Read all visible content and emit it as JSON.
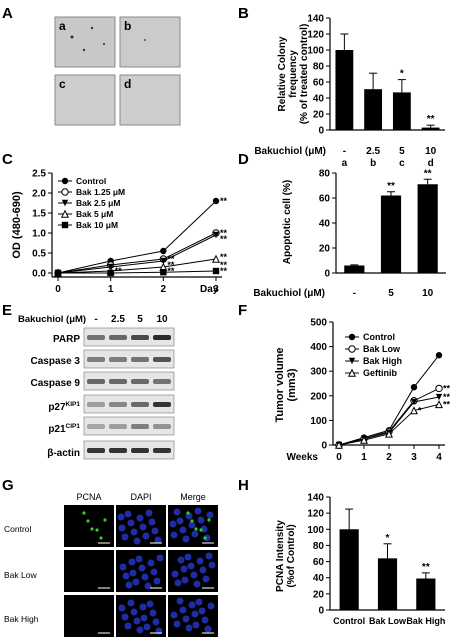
{
  "panel_labels": [
    "A",
    "B",
    "C",
    "D",
    "E",
    "F",
    "G",
    "H"
  ],
  "panel_a": {
    "sublabels": [
      "a",
      "b",
      "c",
      "d"
    ]
  },
  "chart_data": [
    {
      "panel": "B",
      "type": "bar",
      "ylabel_lines": [
        "Relative Colony",
        "frequency",
        "(% of treated control)"
      ],
      "xlabel": "Bakuchiol (μM)",
      "categories": [
        "-",
        "2.5",
        "5",
        "10"
      ],
      "sublabels": [
        "a",
        "b",
        "c",
        "d"
      ],
      "values": [
        100,
        51,
        47,
        3
      ],
      "errors": [
        20,
        20,
        16,
        3
      ],
      "significance": [
        "",
        "",
        "*",
        "**"
      ],
      "ylim": [
        0,
        140
      ],
      "yticks": [
        0,
        20,
        40,
        60,
        80,
        100,
        120,
        140
      ]
    },
    {
      "panel": "C",
      "type": "line",
      "ylabel": "OD (480-690)",
      "xlabel": "Day",
      "x": [
        0,
        1,
        2,
        3
      ],
      "ylim": [
        -0.1,
        2.5
      ],
      "yticks": [
        0.0,
        0.5,
        1.0,
        1.5,
        2.0,
        2.5
      ],
      "series": [
        {
          "name": "Control",
          "marker": "circle-filled",
          "values": [
            0.0,
            0.3,
            0.55,
            1.8
          ]
        },
        {
          "name": "Bak 1.25 μM",
          "marker": "circle-open",
          "values": [
            0.0,
            0.2,
            0.35,
            1.0
          ]
        },
        {
          "name": "Bak   2.5 μM",
          "marker": "triangle-down-filled",
          "values": [
            0.0,
            0.15,
            0.3,
            0.95
          ]
        },
        {
          "name": "Bak     5 μM",
          "marker": "triangle-up-open",
          "values": [
            0.0,
            0.05,
            0.15,
            0.35
          ]
        },
        {
          "name": "Bak   10 μM",
          "marker": "square-filled",
          "values": [
            0.0,
            0.0,
            0.02,
            0.05
          ]
        }
      ],
      "annotations": [
        {
          "x": 3,
          "y": 1.8,
          "text": "**"
        },
        {
          "x": 3,
          "y": 1.0,
          "text": "**"
        },
        {
          "x": 3,
          "y": 0.85,
          "text": "**"
        },
        {
          "x": 3,
          "y": 0.4,
          "text": "**"
        },
        {
          "x": 3,
          "y": 0.2,
          "text": "**"
        },
        {
          "x": 3,
          "y": 0.05,
          "text": "**"
        },
        {
          "x": 2,
          "y": 0.35,
          "text": "**"
        },
        {
          "x": 2,
          "y": 0.2,
          "text": "**"
        },
        {
          "x": 2,
          "y": 0.05,
          "text": "**"
        },
        {
          "x": 1,
          "y": 0.05,
          "text": "**"
        }
      ]
    },
    {
      "panel": "D",
      "type": "bar",
      "ylabel": "Apoptotic cell (%)",
      "xlabel": "Bakuchiol (μM)",
      "categories": [
        "-",
        "5",
        "10"
      ],
      "values": [
        6,
        62,
        71
      ],
      "errors": [
        0.5,
        3,
        4
      ],
      "significance": [
        "",
        "**",
        "**"
      ],
      "ylim": [
        0,
        80
      ],
      "yticks": [
        0,
        20,
        40,
        60,
        80
      ]
    },
    {
      "panel": "F",
      "type": "line",
      "ylabel_lines": [
        "Tumor volume",
        "(mm3)"
      ],
      "xlabel": "Weeks",
      "x": [
        0,
        1,
        2,
        3,
        4
      ],
      "ylim": [
        0,
        500
      ],
      "yticks": [
        0,
        100,
        200,
        300,
        400,
        500
      ],
      "series": [
        {
          "name": "Control",
          "marker": "circle-filled",
          "values": [
            0,
            30,
            60,
            235,
            365
          ]
        },
        {
          "name": "Bak Low",
          "marker": "circle-open",
          "values": [
            0,
            25,
            55,
            180,
            230
          ]
        },
        {
          "name": "Bak High",
          "marker": "triangle-down-filled",
          "values": [
            0,
            25,
            50,
            175,
            195
          ]
        },
        {
          "name": "Geftinib",
          "marker": "triangle-up-open",
          "values": [
            0,
            20,
            45,
            140,
            165
          ]
        }
      ],
      "annotations": [
        {
          "x": 3,
          "y": 140,
          "text": "*"
        },
        {
          "x": 4,
          "y": 230,
          "text": "**"
        },
        {
          "x": 4,
          "y": 195,
          "text": "**"
        },
        {
          "x": 4,
          "y": 165,
          "text": "**"
        }
      ]
    },
    {
      "panel": "H",
      "type": "bar",
      "ylabel_lines": [
        "PCNA Intensity",
        "(%of Control)"
      ],
      "categories": [
        "Control",
        "Bak Low",
        "Bak High"
      ],
      "values": [
        100,
        64,
        39
      ],
      "errors": [
        25,
        18,
        7
      ],
      "significance": [
        "",
        "*",
        "**"
      ],
      "ylim": [
        0,
        140
      ],
      "yticks": [
        0,
        20,
        40,
        60,
        80,
        100,
        120,
        140
      ]
    }
  ],
  "panel_e": {
    "header_label": "Bakuchiol (μM)",
    "lanes": [
      "-",
      "2.5",
      "5",
      "10"
    ],
    "rows": [
      "PARP",
      "Caspase 3",
      "Caspase 9",
      "p27KIP1",
      "p21CIP1",
      "β-actin"
    ]
  },
  "panel_g": {
    "columns": [
      "PCNA",
      "DAPI",
      "Merge"
    ],
    "rows": [
      "Control",
      "Bak Low",
      "Bak High"
    ]
  }
}
